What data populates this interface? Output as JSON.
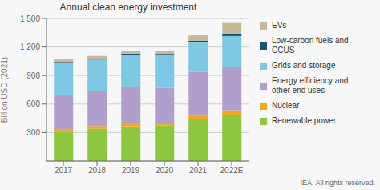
{
  "chart_data": {
    "type": "bar",
    "stacked": true,
    "title": "Annual clean energy investment",
    "ylabel": "Billion USD (2021)",
    "categories": [
      "2017",
      "2018",
      "2019",
      "2020",
      "2021",
      "2022E"
    ],
    "series": [
      {
        "name": "Renewable power",
        "color": "#8dc63f",
        "values": [
          310,
          340,
          365,
          375,
          440,
          480
        ]
      },
      {
        "name": "Nuclear",
        "color": "#f5a623",
        "values": [
          28,
          28,
          40,
          28,
          38,
          55
        ]
      },
      {
        "name": "Energy efficiency and\nother end uses",
        "color": "#b09fca",
        "values": [
          355,
          370,
          375,
          365,
          460,
          460
        ]
      },
      {
        "name": "Grids and storage",
        "color": "#7ec8e3",
        "values": [
          340,
          330,
          340,
          350,
          310,
          320
        ]
      },
      {
        "name": "Low-carbon fuels and\nCCUS",
        "color": "#1a5276",
        "values": [
          10,
          10,
          10,
          10,
          18,
          18
        ]
      },
      {
        "name": "EVs",
        "color": "#c8b99a",
        "values": [
          28,
          28,
          28,
          33,
          58,
          120
        ]
      }
    ],
    "ylim": [
      0,
      1500
    ],
    "yticks": [
      300,
      600,
      900,
      {
        "value": 1200,
        "label": "1 200"
      },
      {
        "value": 1500,
        "label": "1 500"
      }
    ],
    "grid": true,
    "legend": "right",
    "annotations": [
      "IEA. All rights reserved."
    ]
  }
}
